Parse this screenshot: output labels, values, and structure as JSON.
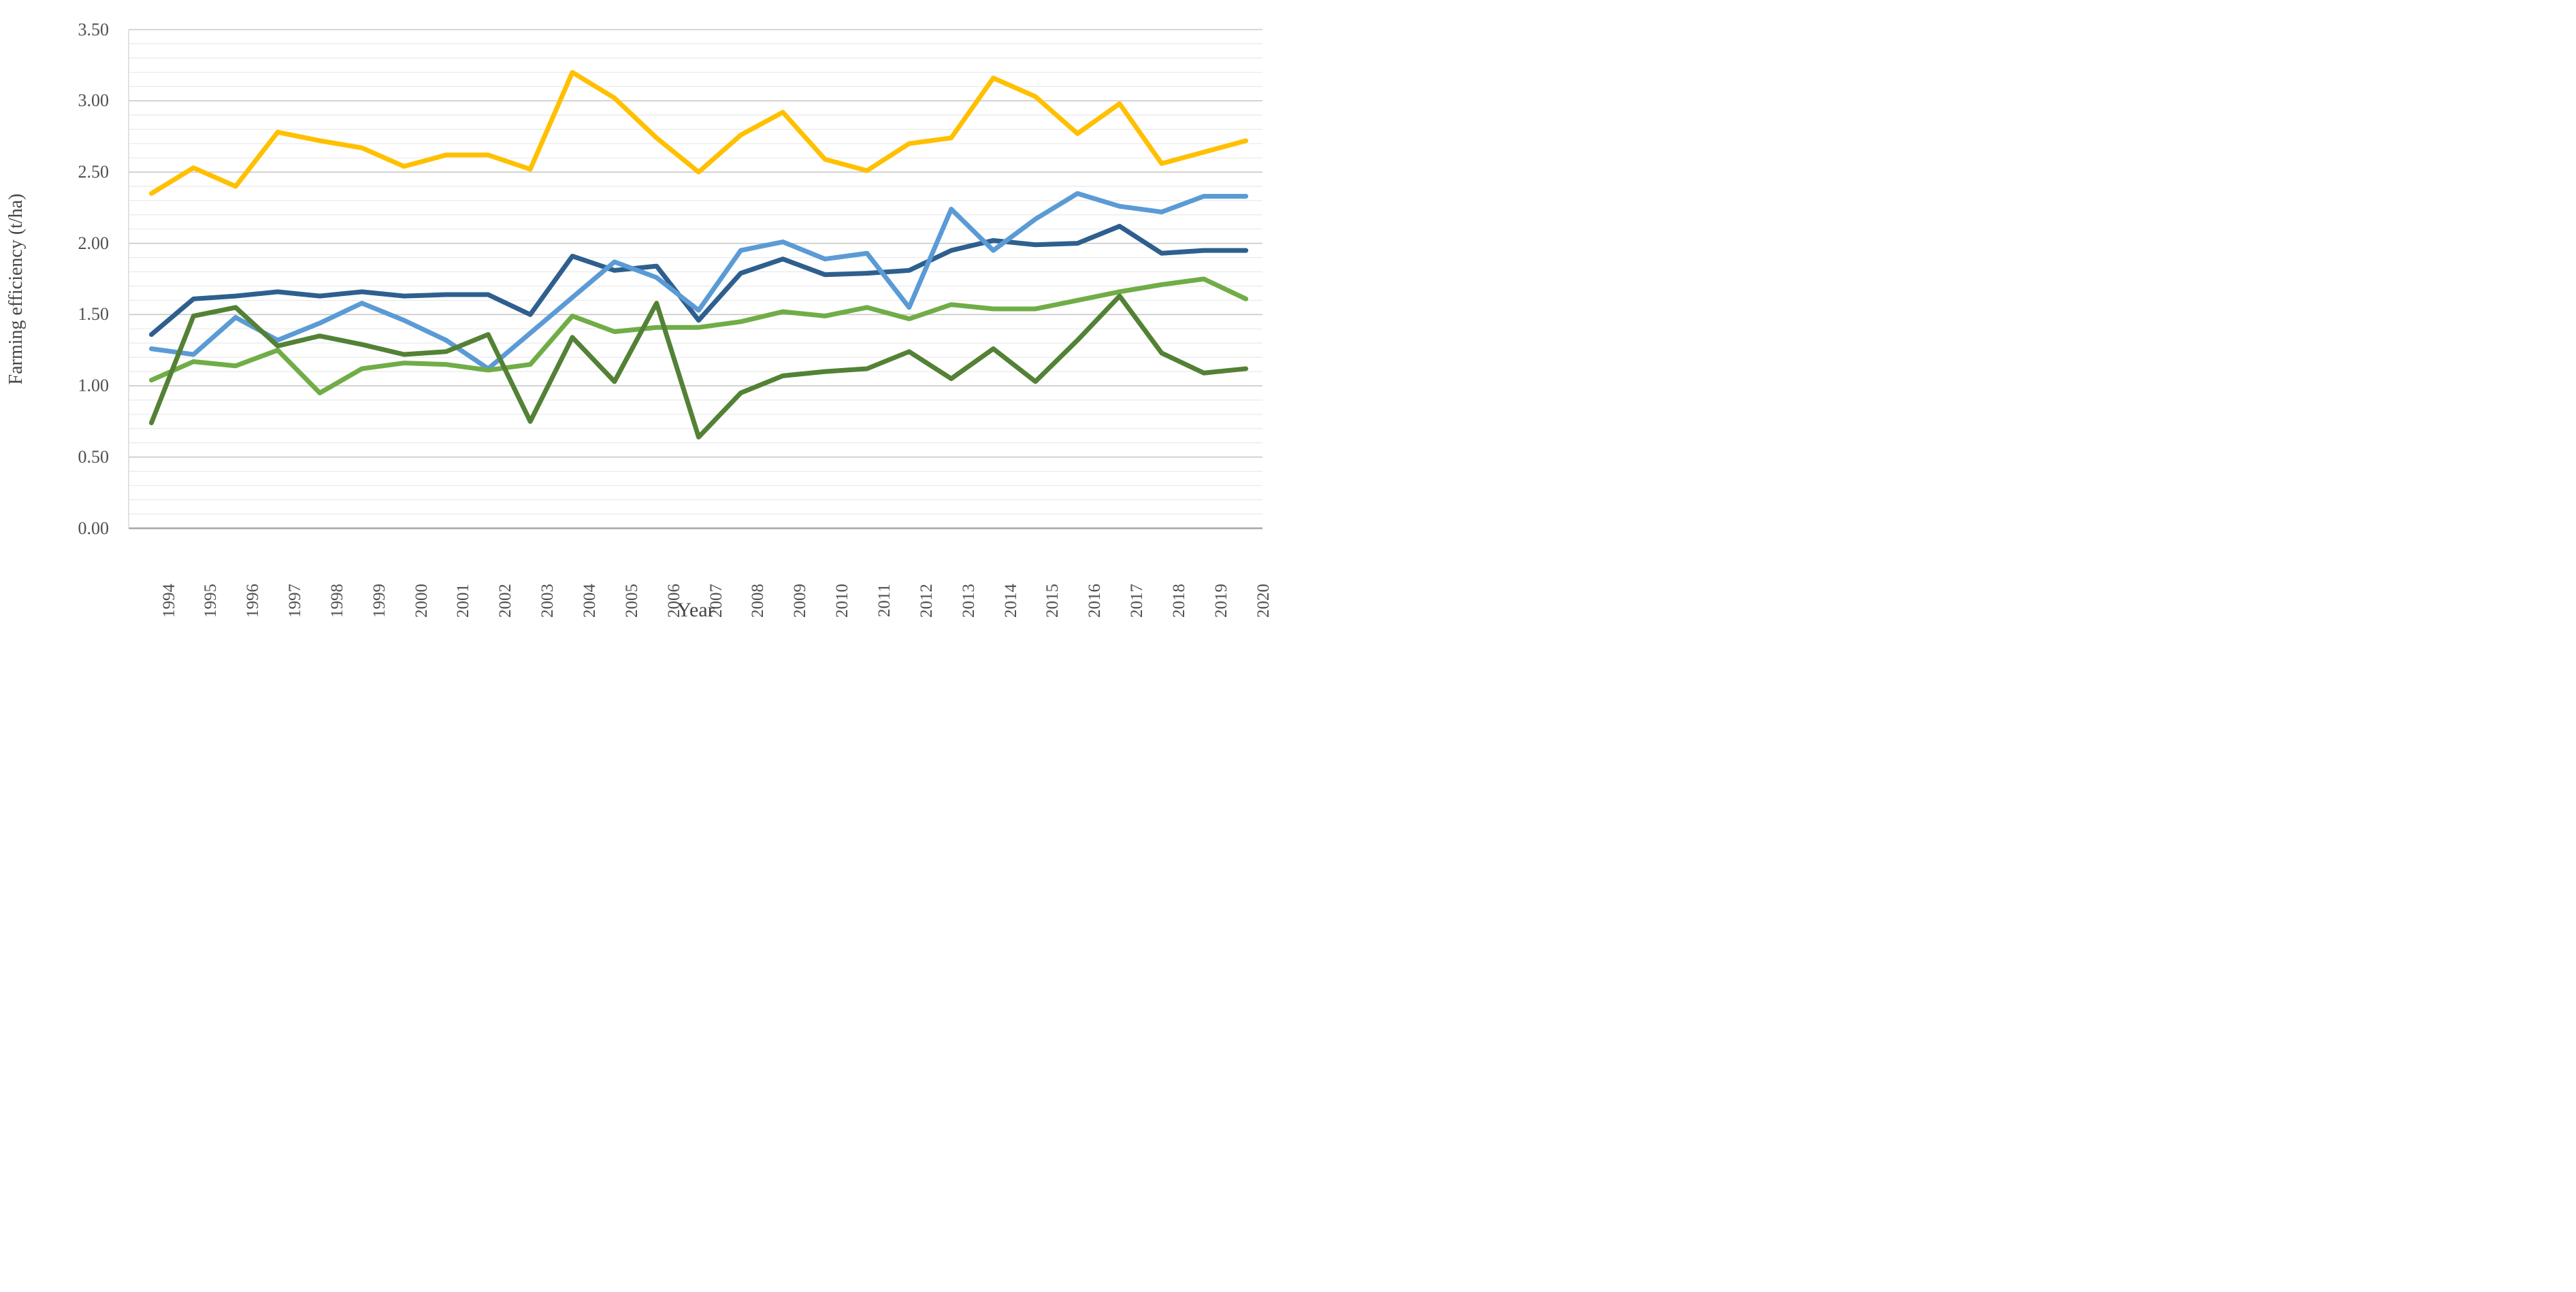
{
  "axes": {
    "y_title": "Farming efficiency (t/ha)",
    "x_title": "Year"
  },
  "chart_data": {
    "type": "line",
    "title": "",
    "xlabel": "Year",
    "ylabel": "Farming efficiency (t/ha)",
    "ylim": [
      0,
      3.5
    ],
    "y_major_step": 0.5,
    "y_minor_step": 0.1,
    "y_tick_labels": [
      "0.00",
      "0.50",
      "1.00",
      "1.50",
      "2.00",
      "2.50",
      "3.00",
      "3.50"
    ],
    "grid": "minor horizontal gridlines every 0.1, major every 0.5, no legend, lines without markers",
    "categories": [
      1994,
      1995,
      1996,
      1997,
      1998,
      1999,
      2000,
      2001,
      2002,
      2003,
      2004,
      2005,
      2006,
      2007,
      2008,
      2009,
      2010,
      2011,
      2012,
      2013,
      2014,
      2015,
      2016,
      2017,
      2018,
      2019,
      2020
    ],
    "series": [
      {
        "name": "dark-blue",
        "color": "#2E5F8E",
        "values": [
          1.36,
          1.61,
          1.63,
          1.66,
          1.63,
          1.66,
          1.63,
          1.64,
          1.64,
          1.5,
          1.91,
          1.81,
          1.84,
          1.46,
          1.79,
          1.89,
          1.78,
          1.79,
          1.81,
          1.95,
          2.02,
          1.99,
          2.0,
          2.12,
          1.93,
          1.95,
          1.95
        ]
      },
      {
        "name": "light-blue",
        "color": "#5B9BD5",
        "values": [
          1.26,
          1.22,
          1.48,
          1.32,
          1.44,
          1.58,
          1.46,
          1.32,
          1.12,
          1.37,
          1.62,
          1.87,
          1.76,
          1.53,
          1.95,
          2.01,
          1.89,
          1.93,
          1.55,
          2.24,
          1.95,
          2.17,
          2.35,
          2.26,
          2.22,
          2.33,
          2.33
        ]
      },
      {
        "name": "light-green",
        "color": "#70AD47",
        "values": [
          1.04,
          1.17,
          1.14,
          1.25,
          0.95,
          1.12,
          1.16,
          1.15,
          1.11,
          1.15,
          1.49,
          1.38,
          1.41,
          1.41,
          1.45,
          1.52,
          1.49,
          1.55,
          1.47,
          1.57,
          1.54,
          1.54,
          1.6,
          1.66,
          1.71,
          1.75,
          1.61
        ]
      },
      {
        "name": "dark-green",
        "color": "#538135",
        "values": [
          0.74,
          1.49,
          1.55,
          1.28,
          1.35,
          1.29,
          1.22,
          1.24,
          1.36,
          0.75,
          1.34,
          1.03,
          1.58,
          0.64,
          0.95,
          1.07,
          1.1,
          1.12,
          1.24,
          1.05,
          1.26,
          1.03,
          1.32,
          1.63,
          1.23,
          1.09,
          1.12
        ]
      },
      {
        "name": "yellow",
        "color": "#FFC000",
        "values": [
          2.35,
          2.53,
          2.4,
          2.78,
          2.72,
          2.67,
          2.54,
          2.62,
          2.62,
          2.52,
          3.2,
          3.02,
          2.74,
          2.5,
          2.76,
          2.92,
          2.59,
          2.51,
          2.7,
          2.74,
          3.16,
          3.03,
          2.77,
          2.98,
          2.56,
          2.64,
          2.72
        ]
      }
    ]
  },
  "style": {
    "minor_grid_color": "#E9E9E9",
    "major_grid_color": "#C9C9C9",
    "zero_axis_color": "#A6A6A6",
    "left_axis_color": "#D9D9D9",
    "label_color": "#4f4f4f"
  }
}
